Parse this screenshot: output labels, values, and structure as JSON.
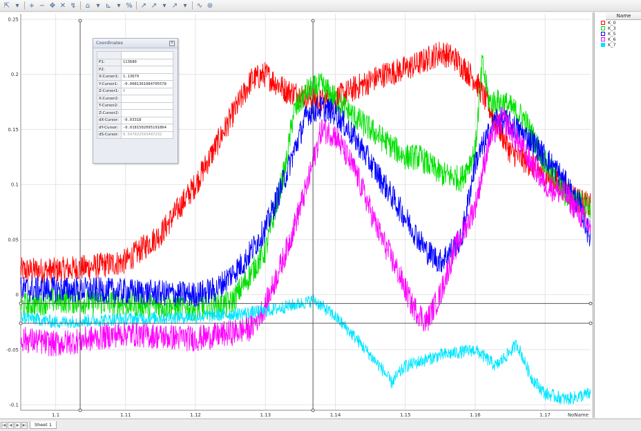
{
  "toolbar": {
    "buttons": [
      {
        "name": "cursor-icon",
        "glyph": "⇱"
      },
      {
        "name": "dropdown-icon",
        "glyph": "▾"
      },
      {
        "name": "zoom-in-icon",
        "glyph": "+"
      },
      {
        "name": "zoom-out-icon",
        "glyph": "−"
      },
      {
        "name": "pan-icon",
        "glyph": "✥"
      },
      {
        "name": "delete-icon",
        "glyph": "✕"
      },
      {
        "name": "reset-zoom-icon",
        "glyph": "↯"
      },
      {
        "name": "measure-icon",
        "glyph": "⌂"
      },
      {
        "name": "dropdown-icon",
        "glyph": "▾"
      },
      {
        "name": "axis-icon",
        "glyph": "⊾"
      },
      {
        "name": "dropdown-icon",
        "glyph": "▾"
      },
      {
        "name": "percent-icon",
        "glyph": "%"
      },
      {
        "name": "scale-icon",
        "glyph": "↗"
      },
      {
        "name": "cursor-a-icon",
        "glyph": "↗"
      },
      {
        "name": "dropdown-icon",
        "glyph": "▾"
      },
      {
        "name": "cursor-b-icon",
        "glyph": "↗"
      },
      {
        "name": "dropdown-icon",
        "glyph": "▾"
      },
      {
        "name": "trend-icon",
        "glyph": "∿"
      },
      {
        "name": "settings-icon",
        "glyph": "⊛"
      }
    ]
  },
  "legend": {
    "header": "Name",
    "items": [
      {
        "name": "K_0",
        "color": "#ff0000"
      },
      {
        "name": "K_3",
        "color": "#00e000"
      },
      {
        "name": "K_5",
        "color": "#0000ff"
      },
      {
        "name": "K_6",
        "color": "#ff00ff"
      },
      {
        "name": "K_7",
        "color": "#00e5ff"
      }
    ]
  },
  "coordinates": {
    "title": "Coordinates",
    "rows": [
      {
        "key": "P1:",
        "value": "113680",
        "faded": false
      },
      {
        "key": "P2:",
        "value": "",
        "faded": false
      },
      {
        "key": "X-Cursor1:",
        "value": "1.13679",
        "faded": false
      },
      {
        "key": "Y-Cursor1:",
        "value": "-0.0081361084705578",
        "faded": false
      },
      {
        "key": "Z-Cursor1:",
        "value": "0",
        "faded": true
      },
      {
        "key": "X-Cursor2:",
        "value": "",
        "faded": false
      },
      {
        "key": "Y-Cursor2:",
        "value": "",
        "faded": false
      },
      {
        "key": "Z-Cursor2:",
        "value": "",
        "faded": false
      },
      {
        "key": "dX-Cursor:",
        "value": "-0.03318",
        "faded": false
      },
      {
        "key": "dY-Cursor:",
        "value": "-0.0181502095191864",
        "faded": false
      },
      {
        "key": "dS-Cursor:",
        "value": "0.547022593487232",
        "faded": true
      }
    ]
  },
  "statusbar": {
    "nav": [
      "|◀",
      "◀",
      "▶",
      "▶|"
    ],
    "sheet_tab": "Sheet 1"
  },
  "chart_data": {
    "type": "line",
    "xlabel": "NoName",
    "xlim": [
      1.095,
      1.1765
    ],
    "ylim": [
      -0.105,
      0.255
    ],
    "x_ticks": [
      1.1,
      1.11,
      1.12,
      1.13,
      1.14,
      1.15,
      1.16,
      1.17
    ],
    "y_ticks": [
      -0.1,
      -0.05,
      0,
      0.05,
      0.1,
      0.15,
      0.2,
      0.25
    ],
    "x_tick_labels": [
      "1.1",
      "1.11",
      "1.12",
      "1.13",
      "1.14",
      "1.15",
      "1.16",
      "1.17"
    ],
    "y_tick_labels": [
      "-0.1",
      "-0.05",
      "0",
      "0.05",
      "0.1",
      "0.15",
      "0.2",
      "0.25"
    ],
    "grid": true,
    "cursors_vertical": [
      1.1035,
      1.1368
    ],
    "cursors_horizontal": [
      -0.008,
      -0.026
    ],
    "series": [
      {
        "name": "K_0",
        "color": "#ff0000",
        "noise": 0.012,
        "points": [
          [
            1.095,
            0.022
          ],
          [
            1.1,
            0.022
          ],
          [
            1.105,
            0.025
          ],
          [
            1.11,
            0.03
          ],
          [
            1.115,
            0.055
          ],
          [
            1.12,
            0.1
          ],
          [
            1.125,
            0.16
          ],
          [
            1.128,
            0.195
          ],
          [
            1.13,
            0.2
          ],
          [
            1.133,
            0.185
          ],
          [
            1.136,
            0.18
          ],
          [
            1.138,
            0.175
          ],
          [
            1.14,
            0.178
          ],
          [
            1.143,
            0.188
          ],
          [
            1.147,
            0.2
          ],
          [
            1.15,
            0.205
          ],
          [
            1.152,
            0.21
          ],
          [
            1.155,
            0.22
          ],
          [
            1.157,
            0.215
          ],
          [
            1.16,
            0.195
          ],
          [
            1.162,
            0.17
          ],
          [
            1.165,
            0.13
          ],
          [
            1.17,
            0.11
          ],
          [
            1.175,
            0.085
          ],
          [
            1.1765,
            0.08
          ]
        ]
      },
      {
        "name": "K_3",
        "color": "#00e000",
        "noise": 0.012,
        "points": [
          [
            1.095,
            -0.01
          ],
          [
            1.1,
            -0.005
          ],
          [
            1.11,
            -0.008
          ],
          [
            1.12,
            -0.012
          ],
          [
            1.125,
            -0.008
          ],
          [
            1.127,
            0.01
          ],
          [
            1.13,
            0.04
          ],
          [
            1.133,
            0.12
          ],
          [
            1.134,
            0.165
          ],
          [
            1.136,
            0.185
          ],
          [
            1.138,
            0.19
          ],
          [
            1.14,
            0.178
          ],
          [
            1.143,
            0.16
          ],
          [
            1.147,
            0.14
          ],
          [
            1.15,
            0.125
          ],
          [
            1.152,
            0.125
          ],
          [
            1.155,
            0.11
          ],
          [
            1.158,
            0.105
          ],
          [
            1.16,
            0.13
          ],
          [
            1.161,
            0.21
          ],
          [
            1.162,
            0.175
          ],
          [
            1.164,
            0.175
          ],
          [
            1.167,
            0.16
          ],
          [
            1.17,
            0.12
          ],
          [
            1.173,
            0.09
          ],
          [
            1.1765,
            0.08
          ]
        ]
      },
      {
        "name": "K_5",
        "color": "#0000ff",
        "noise": 0.012,
        "points": [
          [
            1.095,
            0.005
          ],
          [
            1.1,
            0.005
          ],
          [
            1.11,
            0.003
          ],
          [
            1.12,
            0.0
          ],
          [
            1.123,
            0.005
          ],
          [
            1.127,
            0.03
          ],
          [
            1.13,
            0.06
          ],
          [
            1.133,
            0.11
          ],
          [
            1.136,
            0.165
          ],
          [
            1.138,
            0.17
          ],
          [
            1.14,
            0.165
          ],
          [
            1.143,
            0.14
          ],
          [
            1.147,
            0.1
          ],
          [
            1.15,
            0.07
          ],
          [
            1.153,
            0.04
          ],
          [
            1.155,
            0.03
          ],
          [
            1.158,
            0.05
          ],
          [
            1.16,
            0.12
          ],
          [
            1.163,
            0.16
          ],
          [
            1.165,
            0.155
          ],
          [
            1.168,
            0.14
          ],
          [
            1.172,
            0.11
          ],
          [
            1.175,
            0.08
          ],
          [
            1.1765,
            0.05
          ]
        ]
      },
      {
        "name": "K_6",
        "color": "#ff00ff",
        "noise": 0.012,
        "points": [
          [
            1.095,
            -0.04
          ],
          [
            1.1,
            -0.045
          ],
          [
            1.105,
            -0.04
          ],
          [
            1.11,
            -0.035
          ],
          [
            1.115,
            -0.038
          ],
          [
            1.12,
            -0.04
          ],
          [
            1.125,
            -0.035
          ],
          [
            1.128,
            -0.03
          ],
          [
            1.13,
            -0.01
          ],
          [
            1.133,
            0.04
          ],
          [
            1.136,
            0.1
          ],
          [
            1.138,
            0.15
          ],
          [
            1.14,
            0.145
          ],
          [
            1.143,
            0.11
          ],
          [
            1.146,
            0.06
          ],
          [
            1.149,
            0.02
          ],
          [
            1.151,
            -0.01
          ],
          [
            1.153,
            -0.025
          ],
          [
            1.155,
            0.0
          ],
          [
            1.157,
            0.04
          ],
          [
            1.16,
            0.08
          ],
          [
            1.162,
            0.14
          ],
          [
            1.164,
            0.16
          ],
          [
            1.167,
            0.13
          ],
          [
            1.17,
            0.1
          ],
          [
            1.173,
            0.09
          ],
          [
            1.1765,
            0.06
          ]
        ]
      },
      {
        "name": "K_7",
        "color": "#00e5ff",
        "noise": 0.006,
        "points": [
          [
            1.095,
            -0.02
          ],
          [
            1.1,
            -0.025
          ],
          [
            1.11,
            -0.022
          ],
          [
            1.12,
            -0.02
          ],
          [
            1.125,
            -0.018
          ],
          [
            1.13,
            -0.015
          ],
          [
            1.135,
            -0.008
          ],
          [
            1.137,
            -0.005
          ],
          [
            1.14,
            -0.02
          ],
          [
            1.143,
            -0.04
          ],
          [
            1.145,
            -0.055
          ],
          [
            1.147,
            -0.07
          ],
          [
            1.148,
            -0.08
          ],
          [
            1.15,
            -0.065
          ],
          [
            1.155,
            -0.055
          ],
          [
            1.16,
            -0.05
          ],
          [
            1.163,
            -0.065
          ],
          [
            1.166,
            -0.045
          ],
          [
            1.168,
            -0.075
          ],
          [
            1.17,
            -0.09
          ],
          [
            1.173,
            -0.095
          ],
          [
            1.1765,
            -0.09
          ]
        ]
      }
    ]
  }
}
